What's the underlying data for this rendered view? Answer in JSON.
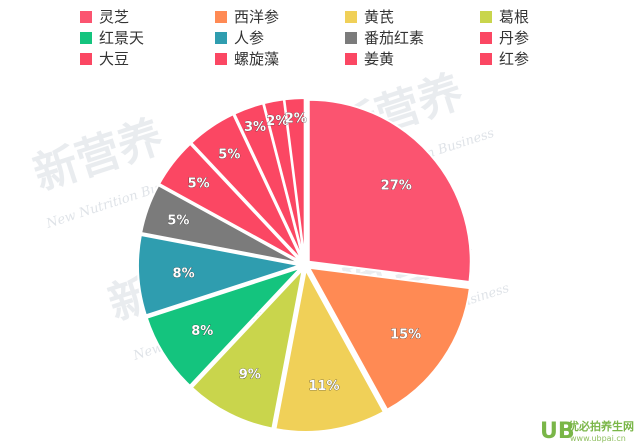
{
  "chart_data": {
    "type": "pie",
    "title": "",
    "legend_position": "top",
    "slices": [
      {
        "label": "灵芝",
        "value": 27,
        "display": "27%",
        "color": "#fb5470"
      },
      {
        "label": "西洋参",
        "value": 15,
        "display": "15%",
        "color": "#ff8a54"
      },
      {
        "label": "黄芪",
        "value": 11,
        "display": "11%",
        "color": "#f0d058"
      },
      {
        "label": "葛根",
        "value": 9,
        "display": "9%",
        "color": "#c9d54c"
      },
      {
        "label": "红景天",
        "value": 8,
        "display": "8%",
        "color": "#14c47e"
      },
      {
        "label": "人参",
        "value": 8,
        "display": "8%",
        "color": "#2f9daf"
      },
      {
        "label": "番茄红素",
        "value": 5,
        "display": "5%",
        "color": "#7b7b7b"
      },
      {
        "label": "丹参",
        "value": 5,
        "display": "5%",
        "color": "#fb4763"
      },
      {
        "label": "大豆",
        "value": 5,
        "display": "5%",
        "color": "#fb4763"
      },
      {
        "label": "螺旋藻",
        "value": 3,
        "display": "3%",
        "color": "#fb4763"
      },
      {
        "label": "姜黄",
        "value": 2,
        "display": "2%",
        "color": "#fb4763"
      },
      {
        "label": "红参",
        "value": 2,
        "display": "2%",
        "color": "#fb4763"
      }
    ]
  },
  "watermark": {
    "cn": "新营养",
    "en": "New Nutrition Business"
  },
  "logo": {
    "mark": "UB",
    "text": "优必拍养生网",
    "url": "www.ubpai.cn"
  }
}
